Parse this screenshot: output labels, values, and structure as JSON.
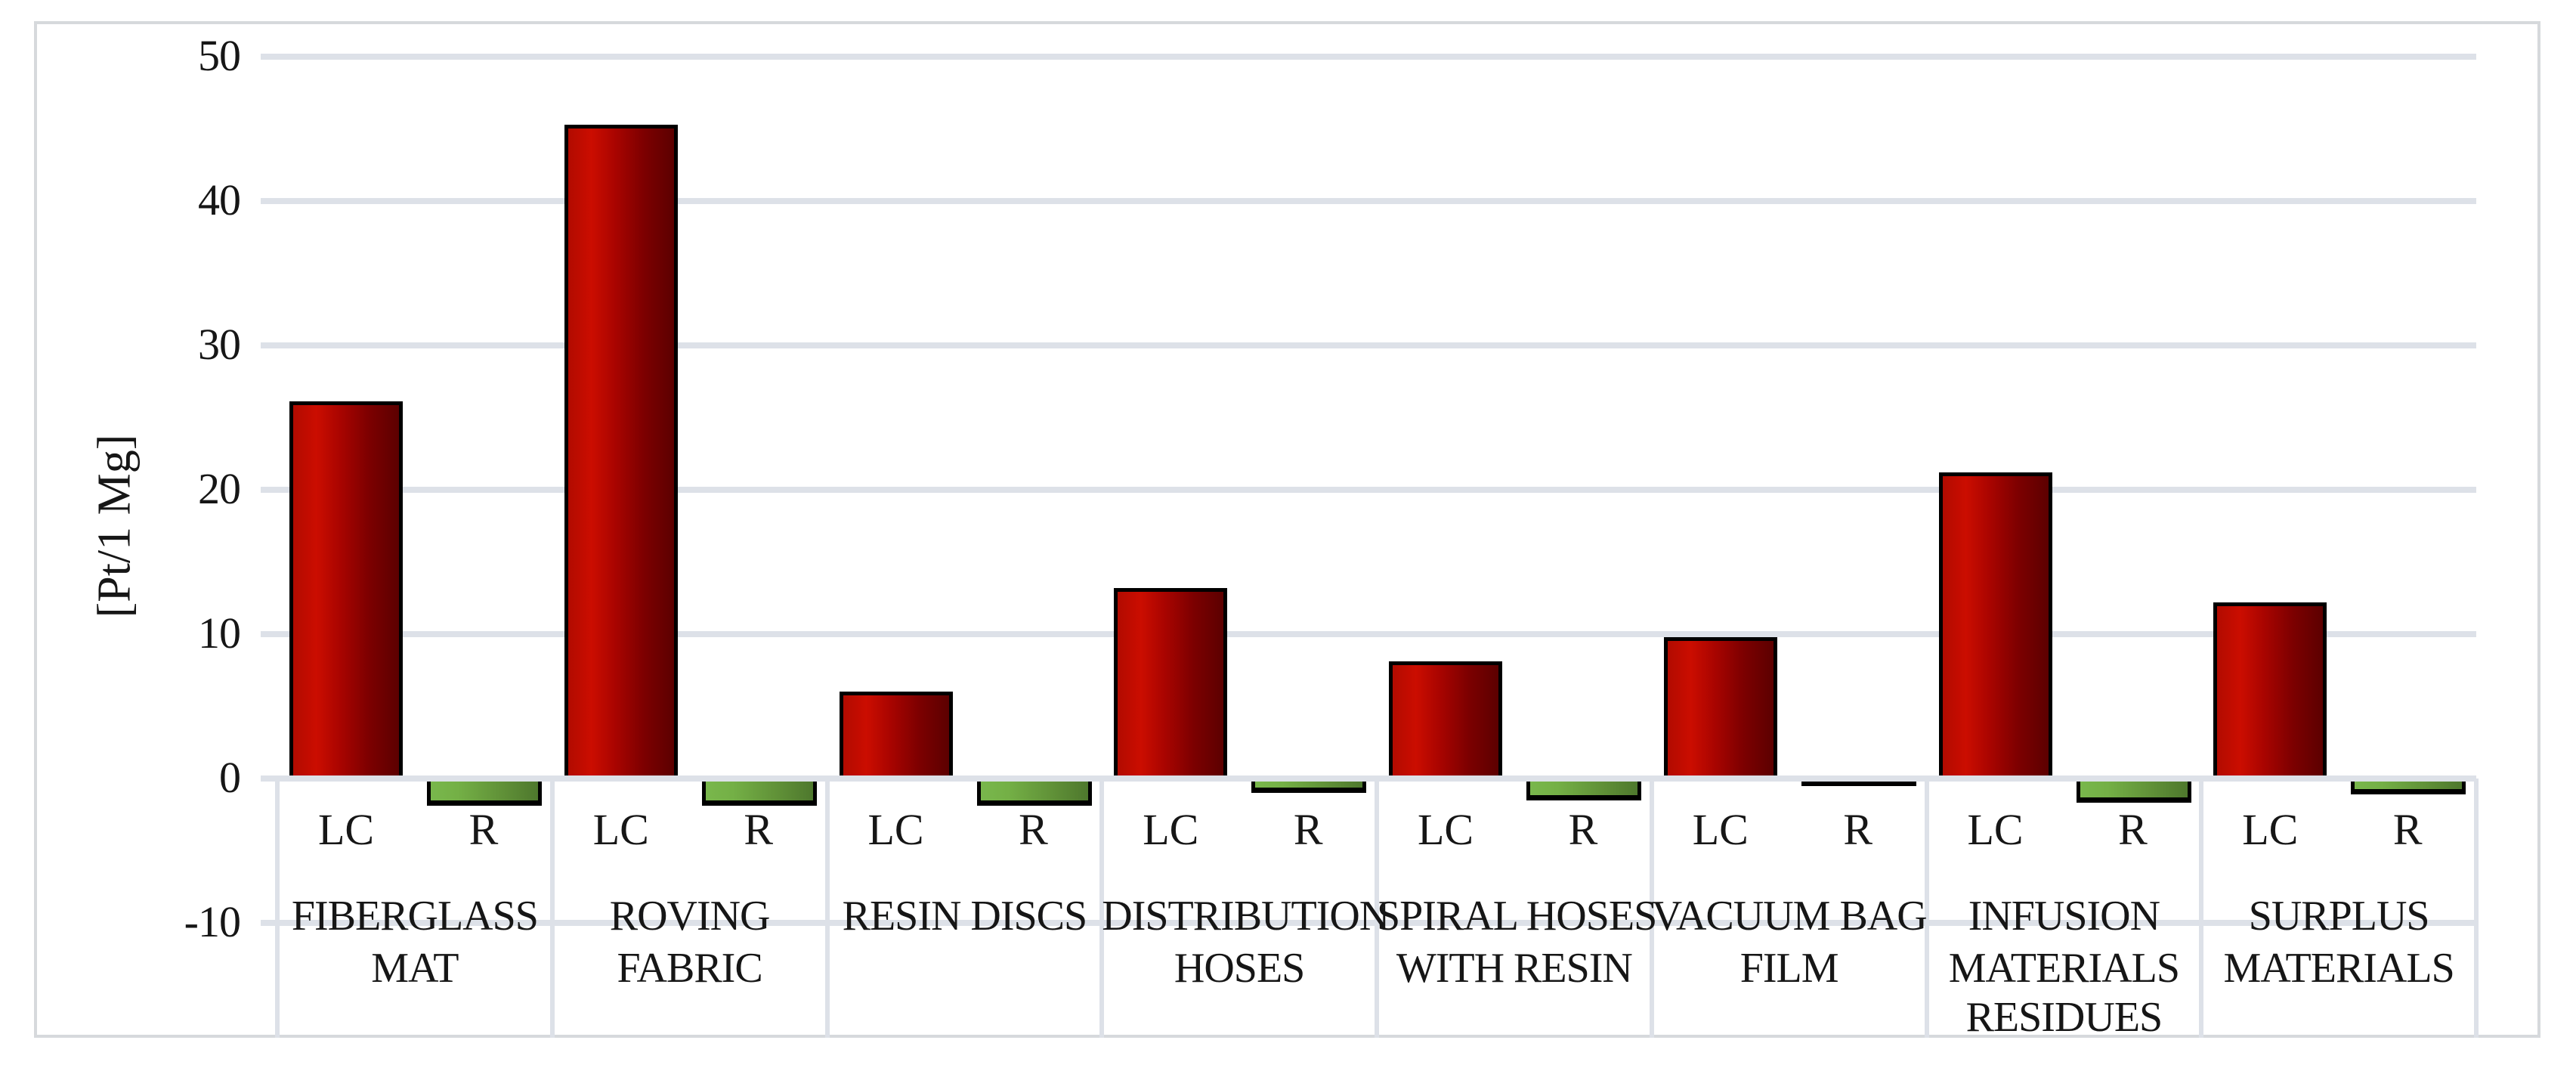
{
  "chart_data": {
    "type": "bar",
    "title": "",
    "ylabel": "[Pt/1 Mg]",
    "xlabel": "",
    "yticks": [
      50,
      40,
      30,
      20,
      10,
      0,
      -10
    ],
    "ylim": [
      -18,
      52.5
    ],
    "grid": true,
    "legend": "none",
    "bar_sublabels": [
      "LC",
      "R"
    ],
    "categories": [
      "FIBERGLASS MAT",
      "ROVING FABRIC",
      "RESIN DISCS",
      "DISTRIBUTION HOSES",
      "SPIRAL HOSES WITH RESIN",
      "VACUUM BAG FILM",
      "INFUSION MATERIALS RESIDUES",
      "SURPLUS MATERIALS"
    ],
    "category_label_lines": [
      [
        "FIBERGLASS",
        "MAT"
      ],
      [
        "ROVING",
        "FABRIC"
      ],
      [
        "RESIN DISCS"
      ],
      [
        "DISTRIBUTION",
        "HOSES"
      ],
      [
        "SPIRAL HOSES",
        "WITH RESIN"
      ],
      [
        "VACUUM BAG",
        "FILM"
      ],
      [
        "INFUSION",
        "MATERIALS",
        "RESIDUES"
      ],
      [
        "SURPLUS",
        "MATERIALS"
      ]
    ],
    "series": [
      {
        "name": "LC",
        "values": [
          26.1,
          45.3,
          6.0,
          13.2,
          8.1,
          9.8,
          21.2,
          12.2
        ]
      },
      {
        "name": "R",
        "values": [
          -1.9,
          -1.9,
          -1.9,
          -1.0,
          -1.5,
          -0.3,
          -1.7,
          -1.1
        ]
      }
    ],
    "colors": {
      "lc_bar_main": "#cb0d00",
      "lc_bar_dark": "#5c0000",
      "r_bar_main": "#74b046",
      "r_bar_dark": "#4e782d",
      "bar_border": "#000000",
      "gridline": "#dde1e8",
      "frame": "#d6d9dc",
      "text": "#161616"
    }
  }
}
